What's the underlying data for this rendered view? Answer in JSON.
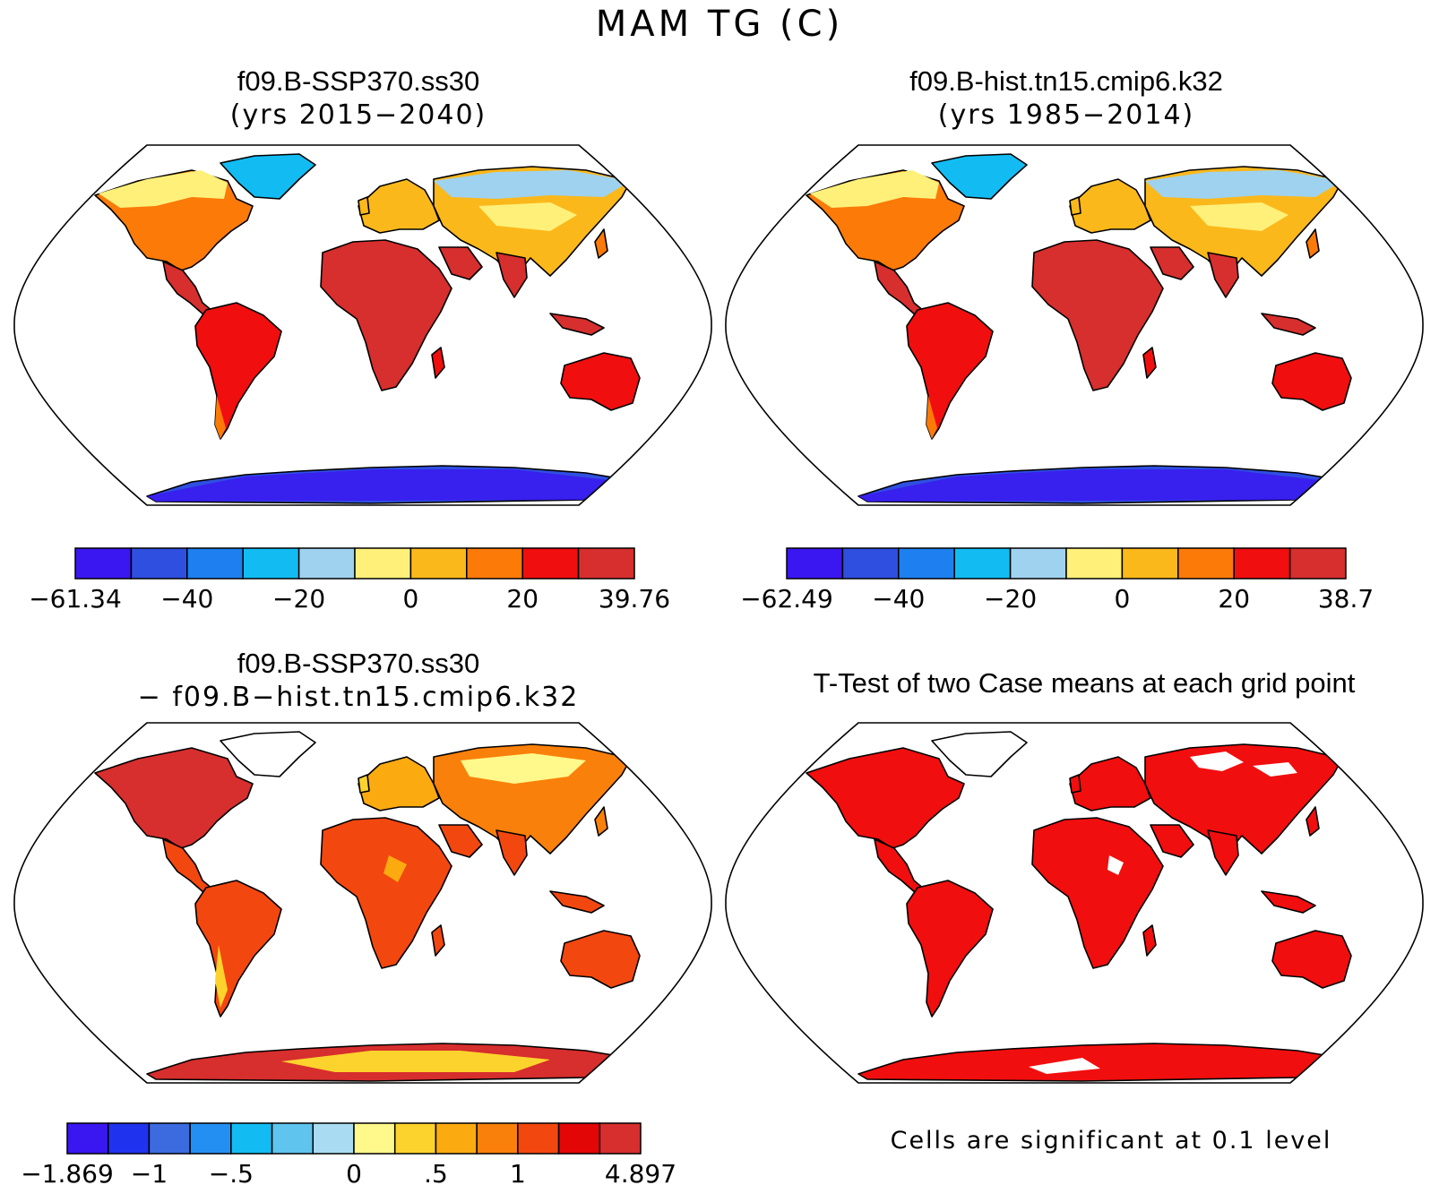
{
  "title": "MAM TG (C)",
  "panels": [
    {
      "id": "ssp370",
      "title": "f09.B-SSP370.ss30",
      "subtitle": "(yrs 2015−2040)",
      "colorbar": {
        "colors": [
          "#3a17f0",
          "#2f4fe0",
          "#1e80f0",
          "#12bcf2",
          "#9fd2ee",
          "#fff07a",
          "#fbb81b",
          "#fb7a08",
          "#f10e0e",
          "#d72e2e"
        ],
        "labels": [
          "−61.34",
          "−40",
          "−20",
          "0",
          "20",
          "39.76"
        ],
        "label_edges": [
          0,
          2,
          4,
          6,
          8,
          10
        ]
      }
    },
    {
      "id": "hist",
      "title": "f09.B-hist.tn15.cmip6.k32",
      "subtitle": "(yrs 1985−2014)",
      "colorbar": {
        "colors": [
          "#3a17f0",
          "#2f4fe0",
          "#1e80f0",
          "#12bcf2",
          "#9fd2ee",
          "#fff07a",
          "#fbb81b",
          "#fb7a08",
          "#f10e0e",
          "#d72e2e"
        ],
        "labels": [
          "−62.49",
          "−40",
          "−20",
          "0",
          "20",
          "38.7"
        ],
        "label_edges": [
          0,
          2,
          4,
          6,
          8,
          10
        ]
      }
    },
    {
      "id": "diff",
      "title": "f09.B-SSP370.ss30",
      "subtitle": "− f09.B−hist.tn15.cmip6.k32",
      "colorbar": {
        "colors": [
          "#3a17f0",
          "#1f33ee",
          "#3c6be0",
          "#248ff2",
          "#12bcf2",
          "#5fc4ee",
          "#a9dcf2",
          "#fff88a",
          "#fcd32c",
          "#fbaa10",
          "#f9800a",
          "#f34710",
          "#e30606",
          "#d72e2e"
        ],
        "labels": [
          "−1.869",
          "−1",
          "−.5",
          "0",
          ".5",
          "1",
          "4.897"
        ],
        "label_edges": [
          0,
          2,
          4,
          7,
          9,
          11,
          14
        ]
      }
    },
    {
      "id": "ttest",
      "title": "T-Test of two Case means at each grid point",
      "footnote": "Cells are significant at 0.1 level"
    }
  ]
}
